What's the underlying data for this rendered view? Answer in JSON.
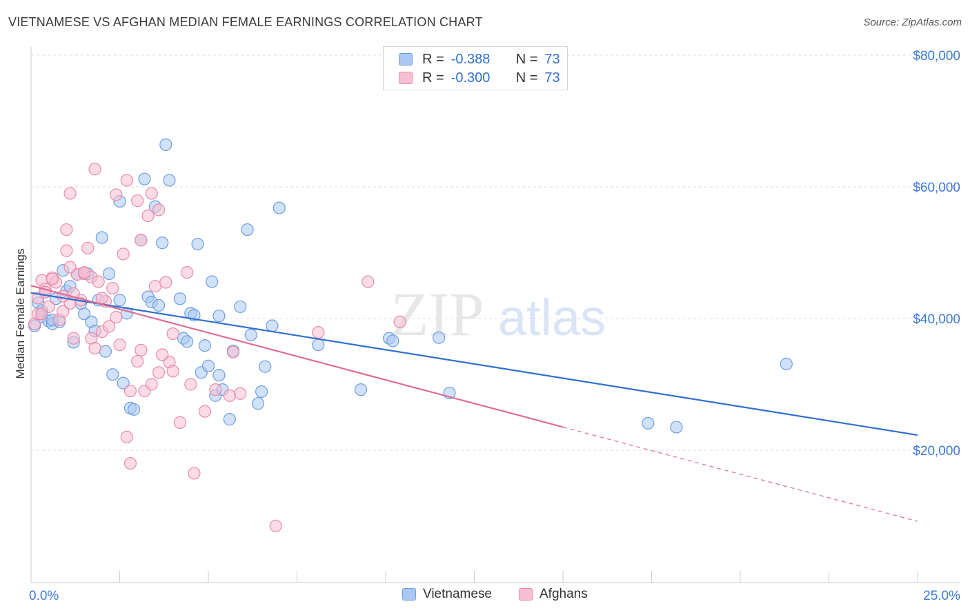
{
  "header": {
    "title": "VIETNAMESE VS AFGHAN MEDIAN FEMALE EARNINGS CORRELATION CHART",
    "source": "Source: ZipAtlas.com"
  },
  "watermark": {
    "zip": "ZIP",
    "atlas": "atlas"
  },
  "stats": {
    "r_label": "R =",
    "n_label": "N =",
    "series": [
      {
        "r": "-0.388",
        "n": "73"
      },
      {
        "r": "-0.300",
        "n": "73"
      }
    ]
  },
  "legend": {
    "items": [
      "Vietnamese",
      "Afghans"
    ]
  },
  "colors": {
    "blue_fill": "#aac8f3",
    "blue_stroke": "#6d9ee0",
    "blue_line": "#2f6fd0",
    "pink_fill": "#f7c0d2",
    "pink_stroke": "#e88aa9",
    "pink_line": "#e06b95",
    "axis_text": "#3d7bd4",
    "grid": "#dddddd"
  },
  "chart_data": {
    "type": "scatter",
    "title": "VIETNAMESE VS AFGHAN MEDIAN FEMALE EARNINGS CORRELATION CHART",
    "xlabel": "",
    "ylabel": "Median Female Earnings",
    "xlim": [
      0,
      25
    ],
    "ylim": [
      0,
      80000
    ],
    "x_tick_labels": [
      "0.0%",
      "25.0%"
    ],
    "y_ticks": [
      20000,
      40000,
      60000,
      80000
    ],
    "y_tick_labels": [
      "$20,000",
      "$40,000",
      "$60,000",
      "$80,000"
    ],
    "grid": true,
    "legend_position": "bottom-center",
    "series": [
      {
        "name": "Vietnamese",
        "trend": {
          "x0": 0,
          "y0": 43900,
          "x1": 25,
          "y1": 22300,
          "solid_until": 25
        },
        "points": [
          [
            0.2,
            42400
          ],
          [
            0.3,
            40300
          ],
          [
            0.4,
            44000
          ],
          [
            0.5,
            39600
          ],
          [
            0.6,
            39200
          ],
          [
            0.7,
            43000
          ],
          [
            0.8,
            39500
          ],
          [
            0.9,
            47300
          ],
          [
            1.0,
            44200
          ],
          [
            1.1,
            44900
          ],
          [
            1.2,
            36400
          ],
          [
            1.4,
            42300
          ],
          [
            1.5,
            40700
          ],
          [
            1.6,
            46800
          ],
          [
            1.7,
            39500
          ],
          [
            1.8,
            38100
          ],
          [
            1.9,
            42800
          ],
          [
            2.0,
            52300
          ],
          [
            2.1,
            35000
          ],
          [
            2.2,
            46800
          ],
          [
            2.3,
            31500
          ],
          [
            2.5,
            42800
          ],
          [
            2.5,
            57800
          ],
          [
            2.6,
            30200
          ],
          [
            2.7,
            40800
          ],
          [
            2.8,
            26400
          ],
          [
            2.9,
            26200
          ],
          [
            3.1,
            51900
          ],
          [
            3.2,
            61200
          ],
          [
            3.3,
            43300
          ],
          [
            3.4,
            42500
          ],
          [
            3.5,
            57000
          ],
          [
            3.6,
            42000
          ],
          [
            3.7,
            51500
          ],
          [
            3.8,
            66400
          ],
          [
            3.9,
            61000
          ],
          [
            4.2,
            43000
          ],
          [
            4.3,
            37000
          ],
          [
            4.4,
            36500
          ],
          [
            4.5,
            40800
          ],
          [
            4.6,
            40500
          ],
          [
            4.7,
            51300
          ],
          [
            4.8,
            31800
          ],
          [
            5.0,
            32800
          ],
          [
            5.1,
            45600
          ],
          [
            5.2,
            28300
          ],
          [
            5.3,
            40400
          ],
          [
            5.3,
            31400
          ],
          [
            5.4,
            29200
          ],
          [
            5.6,
            24700
          ],
          [
            5.7,
            35100
          ],
          [
            5.9,
            41800
          ],
          [
            6.1,
            53500
          ],
          [
            6.2,
            37500
          ],
          [
            6.4,
            27100
          ],
          [
            6.5,
            28900
          ],
          [
            6.6,
            32700
          ],
          [
            6.8,
            38900
          ],
          [
            7.0,
            56800
          ],
          [
            8.1,
            36000
          ],
          [
            9.3,
            29200
          ],
          [
            10.1,
            37000
          ],
          [
            10.2,
            36600
          ],
          [
            11.5,
            37100
          ],
          [
            11.8,
            28700
          ],
          [
            17.4,
            24100
          ],
          [
            18.2,
            23500
          ],
          [
            21.3,
            33100
          ],
          [
            0.1,
            38900
          ],
          [
            0.3,
            41200
          ],
          [
            0.6,
            39800
          ],
          [
            1.3,
            46700
          ],
          [
            4.9,
            35900
          ]
        ]
      },
      {
        "name": "Afghans",
        "trend": {
          "x0": 0,
          "y0": 45000,
          "x1": 25,
          "y1": 9200,
          "solid_until": 15
        },
        "points": [
          [
            0.1,
            39200
          ],
          [
            0.2,
            40700
          ],
          [
            0.3,
            45800
          ],
          [
            0.4,
            44500
          ],
          [
            0.5,
            41800
          ],
          [
            0.6,
            46200
          ],
          [
            0.7,
            45500
          ],
          [
            0.8,
            39800
          ],
          [
            0.9,
            41100
          ],
          [
            1.0,
            50300
          ],
          [
            1.0,
            53500
          ],
          [
            1.1,
            59000
          ],
          [
            1.1,
            42300
          ],
          [
            1.2,
            37000
          ],
          [
            1.3,
            46700
          ],
          [
            1.4,
            42800
          ],
          [
            1.5,
            46800
          ],
          [
            1.6,
            50700
          ],
          [
            1.7,
            46300
          ],
          [
            1.7,
            37000
          ],
          [
            1.8,
            62700
          ],
          [
            1.9,
            45600
          ],
          [
            2.0,
            38000
          ],
          [
            2.1,
            42600
          ],
          [
            2.2,
            38800
          ],
          [
            2.3,
            44600
          ],
          [
            2.4,
            58800
          ],
          [
            2.5,
            36000
          ],
          [
            2.6,
            49800
          ],
          [
            2.7,
            61000
          ],
          [
            2.7,
            22000
          ],
          [
            2.8,
            29000
          ],
          [
            2.8,
            18000
          ],
          [
            3.0,
            57900
          ],
          [
            3.0,
            33500
          ],
          [
            3.1,
            35200
          ],
          [
            3.1,
            51900
          ],
          [
            3.2,
            29000
          ],
          [
            3.3,
            55600
          ],
          [
            3.4,
            59000
          ],
          [
            3.5,
            44900
          ],
          [
            3.6,
            56500
          ],
          [
            3.6,
            31800
          ],
          [
            3.8,
            45500
          ],
          [
            3.9,
            33400
          ],
          [
            4.0,
            37700
          ],
          [
            4.0,
            32000
          ],
          [
            4.2,
            24200
          ],
          [
            4.4,
            47000
          ],
          [
            4.5,
            30000
          ],
          [
            4.6,
            16500
          ],
          [
            4.9,
            25900
          ],
          [
            5.2,
            29200
          ],
          [
            5.6,
            28300
          ],
          [
            5.7,
            34900
          ],
          [
            6.9,
            8500
          ],
          [
            8.1,
            37900
          ],
          [
            9.5,
            45600
          ],
          [
            10.4,
            39500
          ],
          [
            0.2,
            43100
          ],
          [
            0.4,
            44000
          ],
          [
            0.9,
            43400
          ],
          [
            1.2,
            43800
          ],
          [
            1.5,
            47000
          ],
          [
            2.0,
            43100
          ],
          [
            0.6,
            46000
          ],
          [
            3.4,
            30000
          ],
          [
            3.7,
            34500
          ],
          [
            1.8,
            35500
          ],
          [
            2.4,
            40200
          ],
          [
            1.1,
            47800
          ],
          [
            5.9,
            28600
          ],
          [
            0.3,
            40700
          ]
        ]
      }
    ]
  }
}
